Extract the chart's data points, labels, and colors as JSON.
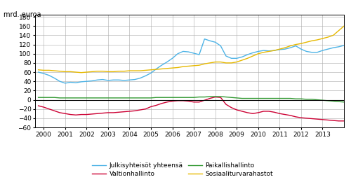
{
  "ylabel": "mrd. euroa",
  "ylim": [
    -60,
    185
  ],
  "yticks": [
    -60,
    -40,
    -20,
    0,
    20,
    40,
    60,
    80,
    100,
    120,
    140,
    160,
    180
  ],
  "xlim": [
    1999.6,
    2014.0
  ],
  "xticks": [
    2000,
    2001,
    2002,
    2003,
    2004,
    2005,
    2006,
    2007,
    2008,
    2009,
    2010,
    2011,
    2012,
    2013
  ],
  "colors": {
    "julkis": "#4db3e6",
    "valtio": "#cc0033",
    "paikalli": "#339933",
    "sosiaali": "#e6b800"
  },
  "legend_labels": [
    "Julkisyhteisöt yhteensä",
    "Valtionhallinto",
    "Paikallishallinto",
    "Sosiaaliturvarahastot"
  ],
  "julkis": [
    60,
    57,
    53,
    47,
    40,
    36,
    38,
    37,
    39,
    40,
    41,
    43,
    44,
    42,
    43,
    43,
    42,
    43,
    44,
    47,
    52,
    58,
    67,
    75,
    82,
    90,
    100,
    105,
    104,
    101,
    98,
    132,
    128,
    125,
    117,
    95,
    90,
    90,
    93,
    98,
    102,
    105,
    107,
    106,
    107,
    109,
    110,
    113,
    117,
    110,
    105,
    103,
    103,
    107,
    110,
    113,
    115,
    118
  ],
  "valtio": [
    -13,
    -16,
    -20,
    -24,
    -28,
    -30,
    -32,
    -33,
    -32,
    -32,
    -31,
    -30,
    -29,
    -28,
    -28,
    -27,
    -26,
    -25,
    -24,
    -22,
    -20,
    -15,
    -12,
    -8,
    -5,
    -3,
    -2,
    -2,
    -3,
    -5,
    -5,
    -1,
    3,
    6,
    5,
    -10,
    -17,
    -22,
    -25,
    -28,
    -30,
    -28,
    -25,
    -25,
    -27,
    -30,
    -32,
    -34,
    -37,
    -39,
    -40,
    -41,
    -42,
    -43,
    -44,
    -45,
    -46,
    -46
  ],
  "paikalli": [
    5,
    5,
    5,
    5,
    4,
    4,
    4,
    4,
    4,
    4,
    4,
    4,
    4,
    4,
    4,
    4,
    4,
    4,
    4,
    4,
    4,
    4,
    5,
    5,
    5,
    5,
    5,
    5,
    5,
    5,
    6,
    6,
    7,
    7,
    7,
    6,
    5,
    4,
    3,
    3,
    3,
    3,
    3,
    3,
    3,
    3,
    3,
    3,
    2,
    2,
    1,
    1,
    0,
    -1,
    -2,
    -3,
    -4,
    -5
  ],
  "sosiaali": [
    65,
    64,
    64,
    63,
    62,
    61,
    61,
    60,
    59,
    60,
    61,
    62,
    62,
    61,
    61,
    62,
    62,
    63,
    63,
    63,
    64,
    65,
    66,
    67,
    68,
    69,
    70,
    72,
    73,
    74,
    75,
    78,
    80,
    82,
    82,
    80,
    80,
    82,
    86,
    90,
    95,
    100,
    103,
    105,
    107,
    110,
    113,
    117,
    120,
    122,
    125,
    128,
    130,
    133,
    136,
    140,
    150,
    160
  ]
}
